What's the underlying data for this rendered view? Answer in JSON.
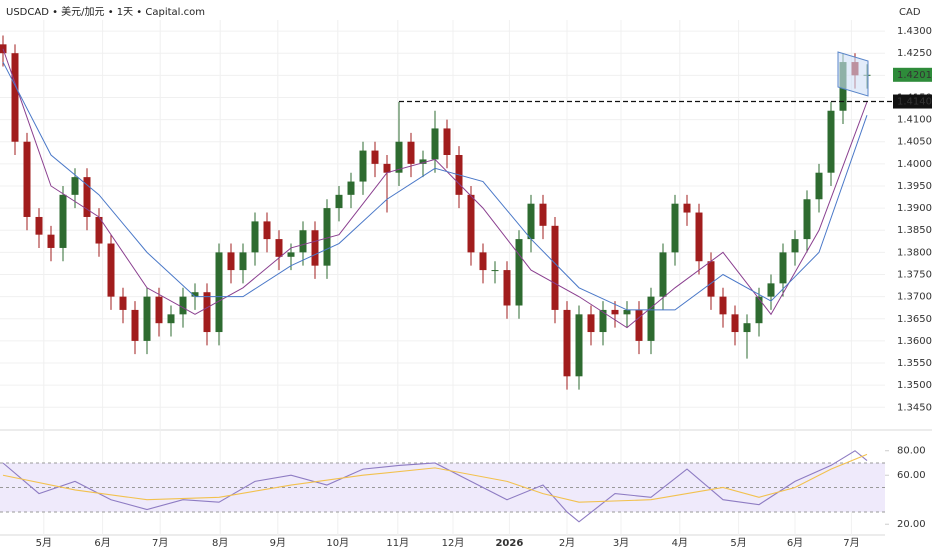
{
  "chart_data": [
    {
      "type": "candlestick",
      "title": "USDCAD • 美元/加元 • 1天 • Capital.com",
      "y_label": "CAD",
      "up_color": "#2e6b30",
      "down_color": "#a11d1d",
      "xlim": [
        -0.25,
        73.5
      ],
      "ylim": [
        1.341,
        1.4325
      ],
      "yticks": [
        {
          "value": 1.43,
          "label": "1.43000"
        },
        {
          "value": 1.425,
          "label": "1.42500"
        },
        {
          "value": 1.42,
          "label": "1.42000"
        },
        {
          "value": 1.415,
          "label": "1.41500"
        },
        {
          "value": 1.41,
          "label": "1.41000"
        },
        {
          "value": 1.405,
          "label": "1.40500"
        },
        {
          "value": 1.4,
          "label": "1.40000"
        },
        {
          "value": 1.395,
          "label": "1.39500"
        },
        {
          "value": 1.39,
          "label": "1.39000"
        },
        {
          "value": 1.385,
          "label": "1.38500"
        },
        {
          "value": 1.38,
          "label": "1.38000"
        },
        {
          "value": 1.375,
          "label": "1.37500"
        },
        {
          "value": 1.37,
          "label": "1.37000"
        },
        {
          "value": 1.365,
          "label": "1.36500"
        },
        {
          "value": 1.36,
          "label": "1.36000"
        },
        {
          "value": 1.355,
          "label": "1.35500"
        },
        {
          "value": 1.35,
          "label": "1.35000"
        },
        {
          "value": 1.345,
          "label": "1.34500"
        }
      ],
      "open": [
        1.427,
        1.425,
        1.405,
        1.388,
        1.384,
        1.381,
        1.393,
        1.397,
        1.388,
        1.382,
        1.37,
        1.367,
        1.36,
        1.37,
        1.364,
        1.366,
        1.37,
        1.371,
        1.362,
        1.38,
        1.376,
        1.38,
        1.387,
        1.383,
        1.379,
        1.38,
        1.385,
        1.377,
        1.39,
        1.393,
        1.396,
        1.403,
        1.4,
        1.398,
        1.405,
        1.4,
        1.401,
        1.408,
        1.402,
        1.393,
        1.38,
        1.376,
        1.376,
        1.368,
        1.383,
        1.391,
        1.386,
        1.367,
        1.352,
        1.366,
        1.362,
        1.367,
        1.366,
        1.367,
        1.36,
        1.37,
        1.38,
        1.391,
        1.389,
        1.378,
        1.37,
        1.366,
        1.362,
        1.364,
        1.37,
        1.373,
        1.38,
        1.383,
        1.392,
        1.398,
        1.412,
        1.423,
        1.42
      ],
      "high": [
        1.429,
        1.427,
        1.407,
        1.39,
        1.386,
        1.395,
        1.399,
        1.399,
        1.39,
        1.384,
        1.372,
        1.369,
        1.372,
        1.372,
        1.368,
        1.372,
        1.373,
        1.373,
        1.382,
        1.382,
        1.382,
        1.389,
        1.389,
        1.385,
        1.382,
        1.387,
        1.387,
        1.392,
        1.395,
        1.398,
        1.405,
        1.405,
        1.402,
        1.414,
        1.407,
        1.403,
        1.412,
        1.41,
        1.404,
        1.395,
        1.382,
        1.378,
        1.378,
        1.385,
        1.393,
        1.393,
        1.388,
        1.369,
        1.368,
        1.368,
        1.369,
        1.369,
        1.369,
        1.369,
        1.372,
        1.382,
        1.393,
        1.393,
        1.391,
        1.38,
        1.372,
        1.368,
        1.366,
        1.372,
        1.375,
        1.382,
        1.385,
        1.394,
        1.4,
        1.414,
        1.425,
        1.425,
        1.4225
      ],
      "low": [
        1.422,
        1.402,
        1.385,
        1.381,
        1.378,
        1.378,
        1.39,
        1.385,
        1.379,
        1.367,
        1.364,
        1.357,
        1.357,
        1.361,
        1.361,
        1.363,
        1.367,
        1.359,
        1.359,
        1.373,
        1.373,
        1.377,
        1.38,
        1.376,
        1.376,
        1.377,
        1.374,
        1.374,
        1.387,
        1.39,
        1.393,
        1.397,
        1.389,
        1.395,
        1.397,
        1.397,
        1.398,
        1.399,
        1.39,
        1.377,
        1.373,
        1.373,
        1.365,
        1.365,
        1.38,
        1.383,
        1.364,
        1.349,
        1.349,
        1.359,
        1.359,
        1.363,
        1.363,
        1.357,
        1.357,
        1.367,
        1.377,
        1.386,
        1.375,
        1.367,
        1.363,
        1.359,
        1.356,
        1.361,
        1.367,
        1.37,
        1.377,
        1.38,
        1.389,
        1.395,
        1.409,
        1.417,
        1.417
      ],
      "close": [
        1.425,
        1.405,
        1.388,
        1.384,
        1.381,
        1.393,
        1.397,
        1.388,
        1.382,
        1.37,
        1.367,
        1.36,
        1.37,
        1.364,
        1.366,
        1.37,
        1.371,
        1.362,
        1.38,
        1.376,
        1.38,
        1.387,
        1.383,
        1.379,
        1.38,
        1.385,
        1.377,
        1.39,
        1.393,
        1.396,
        1.403,
        1.4,
        1.398,
        1.405,
        1.4,
        1.401,
        1.408,
        1.402,
        1.393,
        1.38,
        1.376,
        1.376,
        1.368,
        1.383,
        1.391,
        1.386,
        1.367,
        1.352,
        1.366,
        1.362,
        1.367,
        1.366,
        1.367,
        1.36,
        1.37,
        1.38,
        1.391,
        1.389,
        1.378,
        1.37,
        1.366,
        1.362,
        1.364,
        1.37,
        1.373,
        1.38,
        1.383,
        1.392,
        1.398,
        1.412,
        1.423,
        1.42,
        1.42012
      ],
      "overlays": [
        {
          "color": "#8a3f8f",
          "x": [
            0,
            4,
            8,
            12,
            16,
            20,
            24,
            28,
            32,
            36,
            40,
            44,
            48,
            52,
            56,
            60,
            64,
            68,
            72
          ],
          "values": [
            1.426,
            1.395,
            1.388,
            1.372,
            1.366,
            1.372,
            1.381,
            1.384,
            1.398,
            1.401,
            1.39,
            1.376,
            1.37,
            1.363,
            1.372,
            1.38,
            1.366,
            1.385,
            1.414
          ]
        },
        {
          "color": "#4a78c8",
          "x": [
            0,
            4,
            8,
            12,
            16,
            20,
            24,
            28,
            32,
            36,
            40,
            44,
            48,
            52,
            56,
            60,
            64,
            68,
            72
          ],
          "values": [
            1.423,
            1.402,
            1.393,
            1.38,
            1.37,
            1.37,
            1.377,
            1.382,
            1.392,
            1.399,
            1.396,
            1.383,
            1.372,
            1.367,
            1.367,
            1.375,
            1.369,
            1.38,
            1.411
          ]
        }
      ],
      "level": {
        "value": 1.41408,
        "from": 33
      },
      "current_price": 1.42012,
      "current_color": "#2e8b3a"
    },
    {
      "type": "line",
      "xlim": [
        -0.25,
        73.5
      ],
      "ylim": [
        11.2,
        95.3
      ],
      "yticks": [
        {
          "value": 80,
          "label": "80.00"
        },
        {
          "value": 60,
          "label": "60.00"
        },
        {
          "value": 20,
          "label": "20.00"
        }
      ],
      "levels": [
        70,
        50,
        30
      ],
      "band_color": "#efeafb",
      "xticks": [
        {
          "value": 3.4,
          "label": "5月"
        },
        {
          "value": 8.3,
          "label": "6月"
        },
        {
          "value": 13.1,
          "label": "7月"
        },
        {
          "value": 18.1,
          "label": "8月"
        },
        {
          "value": 22.9,
          "label": "9月"
        },
        {
          "value": 27.9,
          "label": "10月"
        },
        {
          "value": 32.9,
          "label": "11月"
        },
        {
          "value": 37.5,
          "label": "12月"
        },
        {
          "value": 42.2,
          "label": "2026"
        },
        {
          "value": 47,
          "label": "2月"
        },
        {
          "value": 51.5,
          "label": "3月"
        },
        {
          "value": 56.4,
          "label": "4月"
        },
        {
          "value": 61.3,
          "label": "5月"
        },
        {
          "value": 66,
          "label": "6月"
        },
        {
          "value": 70.7,
          "label": "7月"
        }
      ],
      "series": [
        {
          "color": "#8e7cc3",
          "x": [
            0,
            3,
            6,
            9,
            12,
            15,
            18,
            21,
            24,
            27,
            30,
            33,
            36,
            39,
            42,
            45,
            47,
            48,
            51,
            54,
            57,
            60,
            63,
            66,
            69,
            71,
            72
          ],
          "values": [
            70,
            45,
            55,
            40,
            32,
            40,
            38,
            55,
            60,
            52,
            65,
            68,
            70,
            55,
            40,
            52,
            30,
            22,
            45,
            42,
            65,
            40,
            36,
            55,
            68,
            80,
            72
          ]
        },
        {
          "color": "#f2c14e",
          "x": [
            0,
            6,
            12,
            18,
            24,
            30,
            36,
            42,
            45,
            48,
            54,
            60,
            63,
            66,
            69,
            72
          ],
          "values": [
            60,
            48,
            40,
            42,
            52,
            60,
            66,
            55,
            45,
            38,
            40,
            50,
            42,
            50,
            65,
            77
          ]
        }
      ]
    }
  ]
}
